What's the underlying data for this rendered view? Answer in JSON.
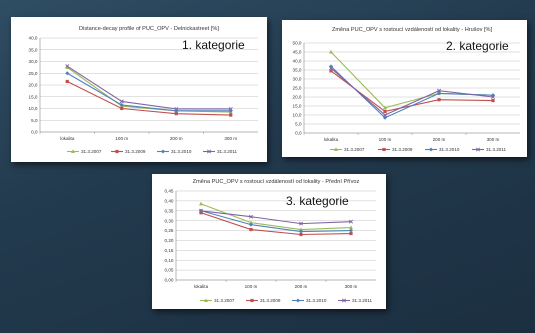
{
  "colors": {
    "background": "#233b4f",
    "series": [
      "#9bbb59",
      "#c0504d",
      "#4f81bd",
      "#8064a2"
    ]
  },
  "chart_data": [
    {
      "type": "line",
      "title": "Distance-decay profile of PUC_OPV - Delnickastreet [%]",
      "overlay_label": "1. kategorie",
      "categories": [
        "lokalita",
        "100 m",
        "200 m",
        "300 m"
      ],
      "y_ticks": [
        "0,0",
        "5,0",
        "10,0",
        "15,0",
        "20,0",
        "25,0",
        "30,0",
        "35,0",
        "40,0"
      ],
      "ylim": [
        0,
        40
      ],
      "grid": true,
      "legend_position": "bottom",
      "series": [
        {
          "name": "31.3.2007",
          "values": [
            27.5,
            11.0,
            9.0,
            8.5
          ]
        },
        {
          "name": "31.3.2009",
          "values": [
            21.5,
            10.0,
            7.8,
            7.2
          ]
        },
        {
          "name": "31.3.2010",
          "values": [
            25.0,
            11.5,
            9.0,
            9.0
          ]
        },
        {
          "name": "31.3.2011",
          "values": [
            28.0,
            13.0,
            9.8,
            9.8
          ]
        }
      ]
    },
    {
      "type": "line",
      "title": "Změna PUC_OPV s rostoucí vzdáleností od lokality - Hrušov [%]",
      "overlay_label": "2. kategorie",
      "categories": [
        "lokalita",
        "100 m",
        "200 m",
        "300 m"
      ],
      "y_ticks": [
        "0,0",
        "5,0",
        "10,0",
        "15,0",
        "20,0",
        "25,0",
        "30,0",
        "35,0",
        "40,0",
        "45,0",
        "50,0"
      ],
      "ylim": [
        0,
        50
      ],
      "grid": true,
      "legend_position": "bottom",
      "series": [
        {
          "name": "31.3.2007",
          "values": [
            45.0,
            14.0,
            22.0,
            21.0
          ]
        },
        {
          "name": "31.3.2009",
          "values": [
            34.5,
            12.0,
            18.5,
            18.0
          ]
        },
        {
          "name": "31.3.2010",
          "values": [
            37.0,
            8.5,
            22.0,
            21.0
          ]
        },
        {
          "name": "31.3.2011",
          "values": [
            36.0,
            10.0,
            23.5,
            20.0
          ]
        }
      ]
    },
    {
      "type": "line",
      "title": "Změna PUC_OPV s rostoucí vzdáleností od lokality - Přední Přívoz",
      "overlay_label": "3. kategorie",
      "categories": [
        "lokalita",
        "100 m",
        "200 m",
        "300 m"
      ],
      "y_ticks": [
        "0,00",
        "0,05",
        "0,10",
        "0,15",
        "0,20",
        "0,25",
        "0,30",
        "0,35",
        "0,40",
        "0,45"
      ],
      "ylim": [
        0,
        0.45
      ],
      "grid": true,
      "legend_position": "bottom",
      "series": [
        {
          "name": "31.3.2007",
          "values": [
            0.385,
            0.29,
            0.255,
            0.265
          ]
        },
        {
          "name": "31.3.2009",
          "values": [
            0.34,
            0.255,
            0.23,
            0.235
          ]
        },
        {
          "name": "31.3.2010",
          "values": [
            0.35,
            0.28,
            0.245,
            0.25
          ]
        },
        {
          "name": "31.3.2011",
          "values": [
            0.35,
            0.32,
            0.285,
            0.295
          ]
        }
      ]
    }
  ]
}
